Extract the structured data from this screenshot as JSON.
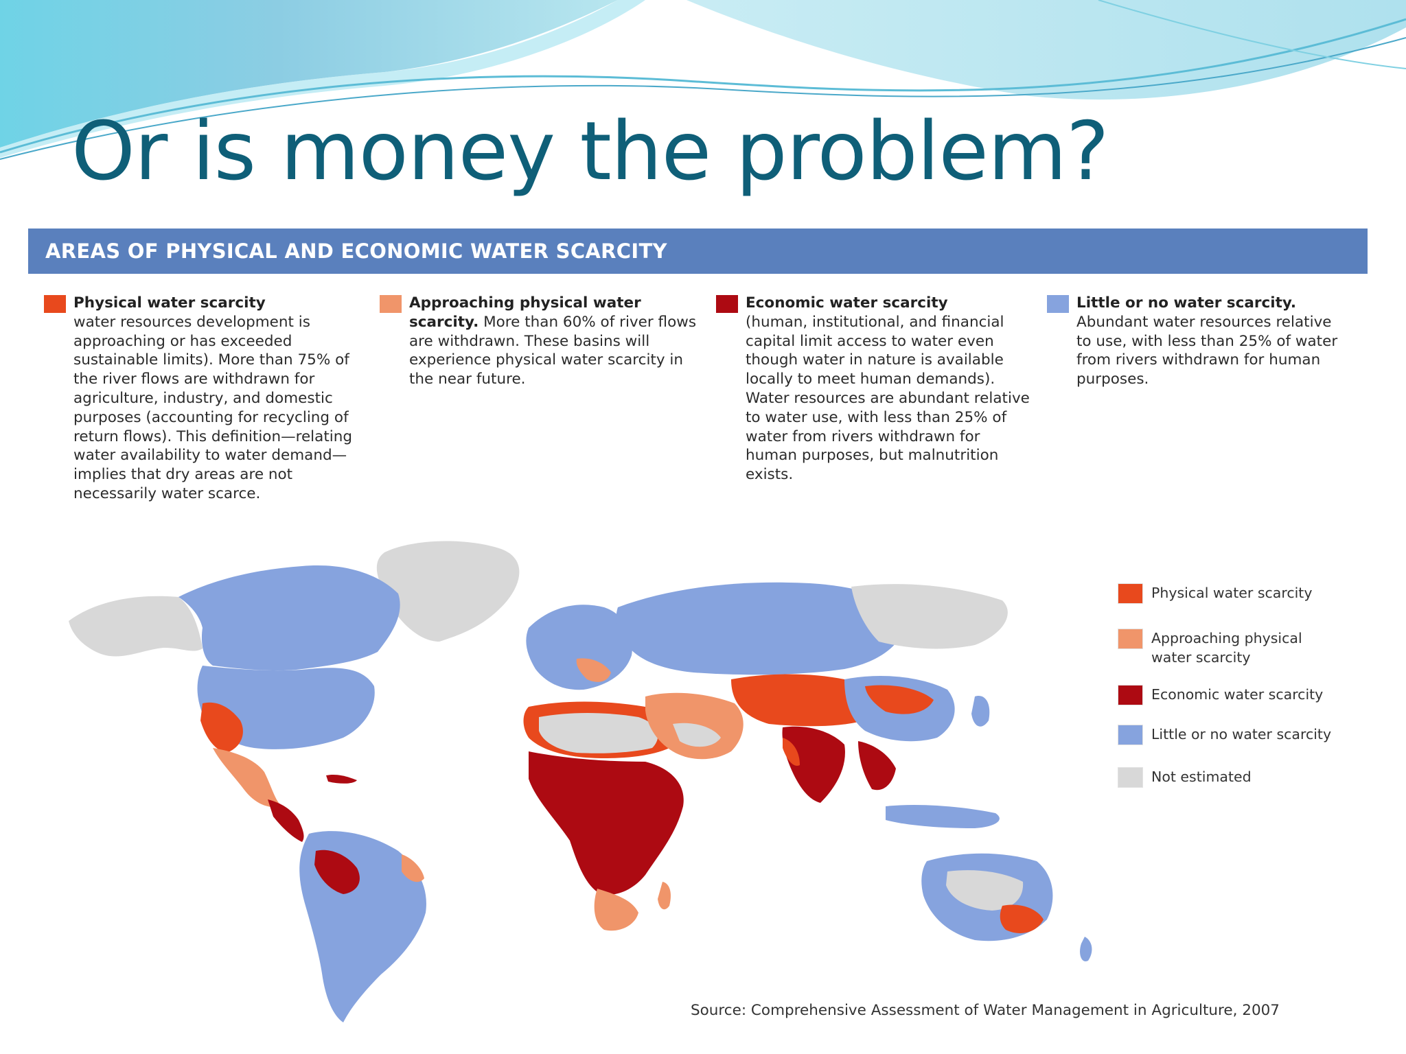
{
  "slide": {
    "title": "Or is money the problem?"
  },
  "figure": {
    "heading": "AREAS OF PHYSICAL AND ECONOMIC WATER SCARCITY",
    "definitions": [
      {
        "label": "Physical water scarcity",
        "text": "water resources development is approaching or has exceeded sustainable limits). More than 75% of the river flows are withdrawn for agriculture, industry, and domestic purposes (accounting for recycling of return flows). This definition—relating water availability to water demand—implies that dry areas are not necessarily water scarce.",
        "color": "#e8491d"
      },
      {
        "label": "Approaching physical water scarcity.",
        "text": " More than 60% of river flows are withdrawn. These basins will experience physical water scarcity in the near future.",
        "color": "#f0956a"
      },
      {
        "label": "Economic water scarcity",
        "text": "(human, institutional, and financial capital limit access to water even though water in nature is available locally to meet human demands). Water resources are abundant relative to water use, with less than 25% of water from rivers withdrawn for human purposes, but malnutrition exists.",
        "color": "#ad0a12"
      },
      {
        "label": "Little or no water scarcity.",
        "text": "Abundant water resources relative to use, with less than 25% of water from rivers withdrawn for human purposes.",
        "color": "#86a3de"
      }
    ],
    "legend": [
      {
        "label": "Physical water scarcity",
        "color": "#e8491d"
      },
      {
        "label": "Approaching physical water scarcity",
        "color": "#f0956a"
      },
      {
        "label": "Economic water scarcity",
        "color": "#ad0a12"
      },
      {
        "label": "Little or no water scarcity",
        "color": "#86a3de"
      },
      {
        "label": "Not estimated",
        "color": "#d8d8d8"
      }
    ],
    "source": "Source:  Comprehensive Assessment of Water Management in Agriculture, 2007"
  }
}
